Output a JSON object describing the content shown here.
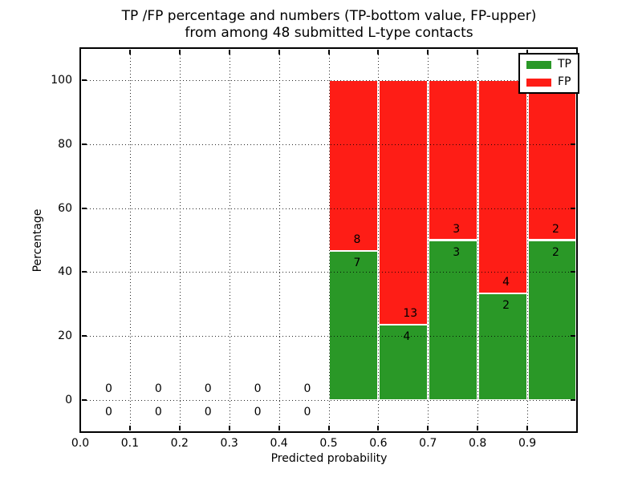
{
  "chart_data": {
    "type": "bar",
    "stacked": true,
    "title": "TP /FP percentage and numbers (TP-bottom value, FP-upper)\nfrom among 48 submitted L-type contacts",
    "title_lines": [
      "TP /FP percentage and numbers (TP-bottom value, FP-upper)",
      "from among 48 submitted L-type contacts"
    ],
    "xlabel": "Predicted probability",
    "ylabel": "Percentage",
    "xlim": [
      0.0,
      1.0
    ],
    "ylim": [
      -10,
      110
    ],
    "xticks": [
      0.0,
      0.1,
      0.2,
      0.3,
      0.4,
      0.5,
      0.6,
      0.7,
      0.8,
      0.9
    ],
    "yticks": [
      0,
      20,
      40,
      60,
      80,
      100
    ],
    "grid": "dotted, drawn over bars",
    "total_submitted_contacts": 48,
    "legend": {
      "position": "upper right",
      "entries": [
        "TP",
        "FP"
      ]
    },
    "series": [
      {
        "name": "TP",
        "color": "#2a9827"
      },
      {
        "name": "FP",
        "color": "#fe1d16"
      }
    ],
    "bins": [
      {
        "x0": 0.0,
        "x1": 0.1,
        "tp": 0,
        "fp": 0,
        "tp_pct": 0,
        "fp_pct": 0
      },
      {
        "x0": 0.1,
        "x1": 0.2,
        "tp": 0,
        "fp": 0,
        "tp_pct": 0,
        "fp_pct": 0
      },
      {
        "x0": 0.2,
        "x1": 0.3,
        "tp": 0,
        "fp": 0,
        "tp_pct": 0,
        "fp_pct": 0
      },
      {
        "x0": 0.3,
        "x1": 0.4,
        "tp": 0,
        "fp": 0,
        "tp_pct": 0,
        "fp_pct": 0
      },
      {
        "x0": 0.4,
        "x1": 0.5,
        "tp": 0,
        "fp": 0,
        "tp_pct": 0,
        "fp_pct": 0
      },
      {
        "x0": 0.5,
        "x1": 0.6,
        "tp": 7,
        "fp": 8,
        "tp_pct": 46.7,
        "fp_pct": 53.3
      },
      {
        "x0": 0.6,
        "x1": 0.7,
        "tp": 4,
        "fp": 13,
        "tp_pct": 23.5,
        "fp_pct": 76.5
      },
      {
        "x0": 0.7,
        "x1": 0.8,
        "tp": 3,
        "fp": 3,
        "tp_pct": 50.0,
        "fp_pct": 50.0
      },
      {
        "x0": 0.8,
        "x1": 0.9,
        "tp": 2,
        "fp": 4,
        "tp_pct": 33.3,
        "fp_pct": 66.7
      },
      {
        "x0": 0.9,
        "x1": 1.0,
        "tp": 2,
        "fp": 2,
        "tp_pct": 50.0,
        "fp_pct": 50.0
      }
    ]
  }
}
